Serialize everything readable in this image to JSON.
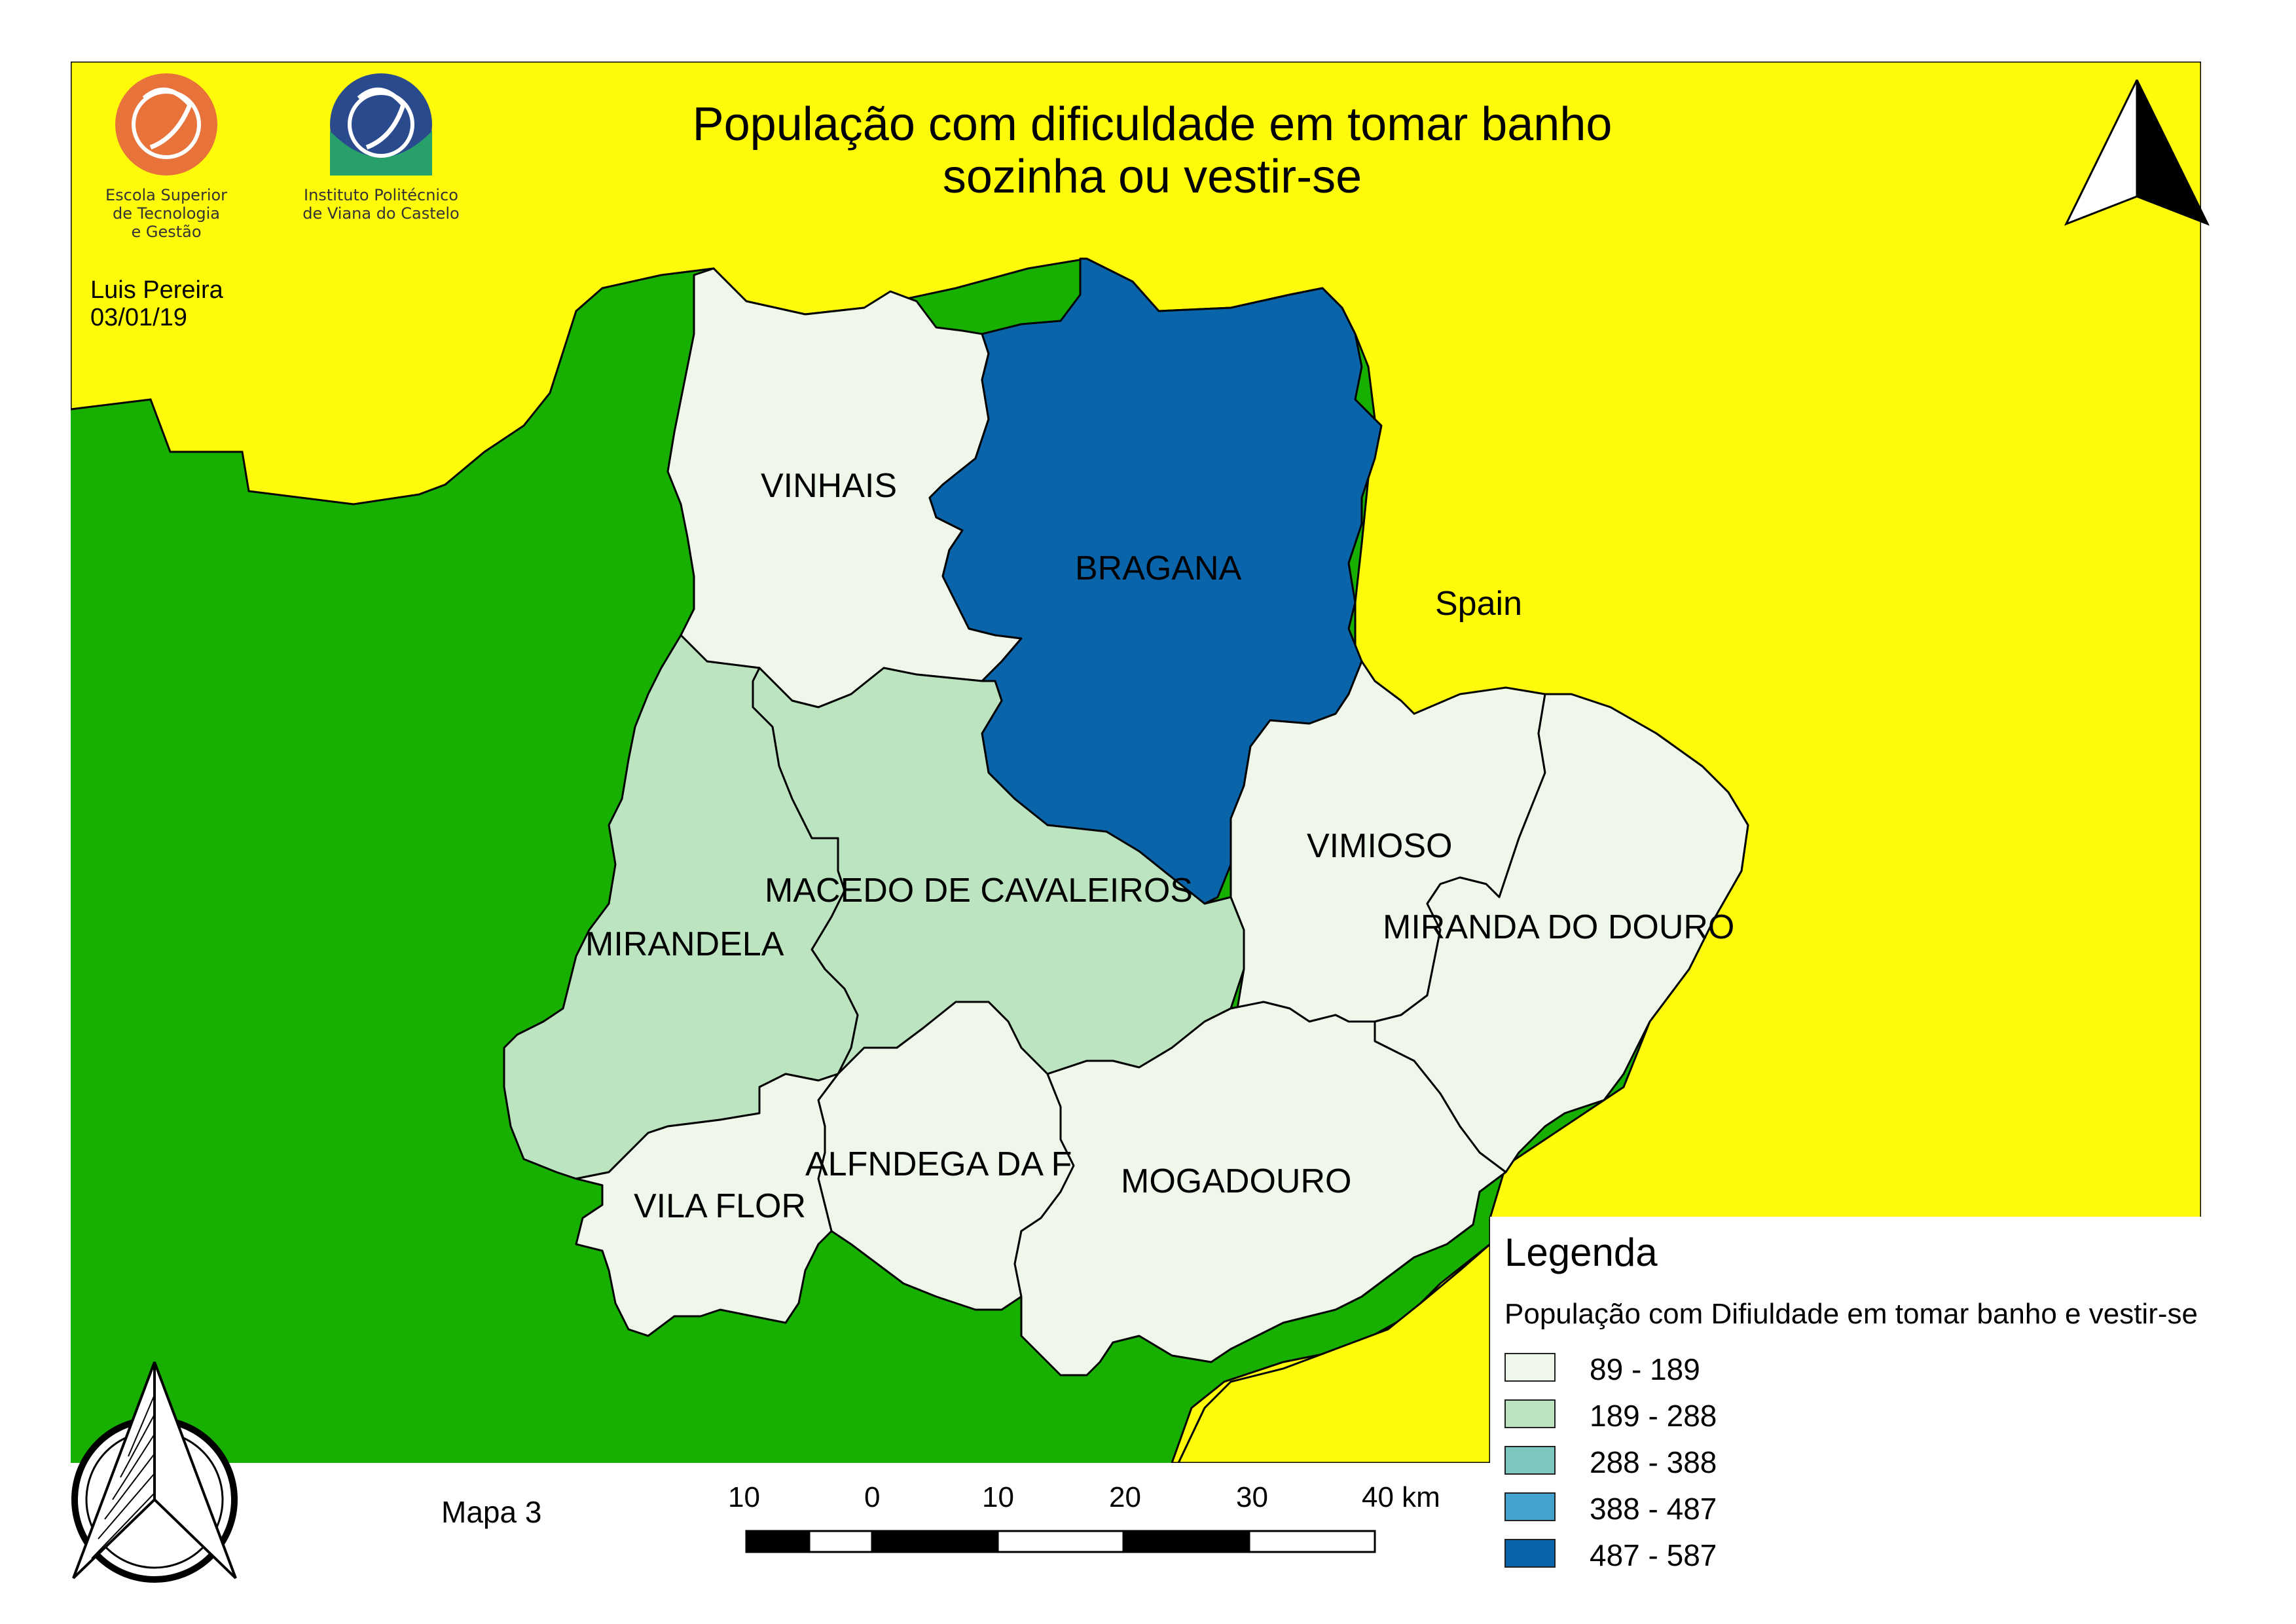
{
  "title": {
    "line1": "População com dificuldade  em tomar banho",
    "line2": "sozinha ou vestir-se"
  },
  "logos": {
    "left": {
      "icon": "estg-logo",
      "caption_lines": [
        "Escola Superior",
        "de Tecnologia",
        "e Gestão"
      ]
    },
    "right": {
      "icon": "ipvc-logo",
      "caption_lines": [
        "Instituto Politécnico",
        "de Viana do Castelo"
      ]
    }
  },
  "author": {
    "name": "Luis Pereira",
    "date": "03/01/19"
  },
  "regions": [
    {
      "name": "VINHAIS",
      "class": 0
    },
    {
      "name": "BRAGANA",
      "class": 4
    },
    {
      "name": "MACEDO DE CAVALEIROS",
      "class": 1
    },
    {
      "name": "MIRANDELA",
      "class": 1
    },
    {
      "name": "VIMIOSO",
      "class": 0
    },
    {
      "name": "MIRANDA DO DOURO",
      "class": 0
    },
    {
      "name": "ALFNDEGA DA F",
      "class": 0
    },
    {
      "name": "VILA FLOR",
      "class": 0
    },
    {
      "name": "MOGADOURO",
      "class": 0
    }
  ],
  "context_labels": {
    "spain": "Spain"
  },
  "legend": {
    "title": "Legenda",
    "subtitle": "População com Difiuldade em tomar banho e vestir-se",
    "classes": [
      {
        "label": "89 - 189",
        "color": "#eff7ea"
      },
      {
        "label": "189 - 288",
        "color": "#bde4c1"
      },
      {
        "label": "288 - 388",
        "color": "#7cc8c0"
      },
      {
        "label": "388 - 487",
        "color": "#43a3cf"
      },
      {
        "label": "487 - 587",
        "color": "#0a64aa"
      }
    ]
  },
  "colors": {
    "spain_fill": "#fffa0a",
    "portugal_fill": "#18b000",
    "border": "#000000"
  },
  "north_arrows": [
    "north-arrow-icon",
    "compass-north-arrow-icon"
  ],
  "map_number": "Mapa 3",
  "scale_bar": {
    "labels": [
      "10",
      "0",
      "10",
      "20",
      "30",
      "40 km"
    ]
  }
}
